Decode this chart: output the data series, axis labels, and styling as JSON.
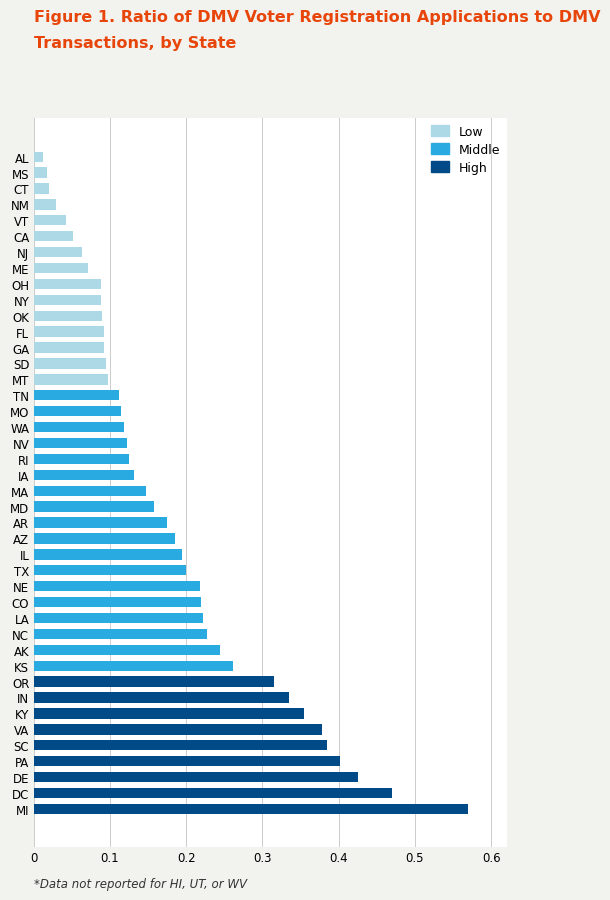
{
  "title_line1": "Figure 1. Ratio of DMV Voter Registration Applications to DMV",
  "title_line2": "Transactions, by State",
  "title_color": "#E8450A",
  "footnote": "*Data not reported for HI, UT, or WV",
  "states": [
    "AL",
    "MS",
    "CT",
    "NM",
    "VT",
    "CA",
    "NJ",
    "ME",
    "OH",
    "NY",
    "OK",
    "FL",
    "GA",
    "SD",
    "MT",
    "TN",
    "MO",
    "WA",
    "NV",
    "RI",
    "IA",
    "MA",
    "MD",
    "AR",
    "AZ",
    "IL",
    "TX",
    "NE",
    "CO",
    "LA",
    "NC",
    "AK",
    "KS",
    "OR",
    "IN",
    "KY",
    "VA",
    "SC",
    "PA",
    "DE",
    "DC",
    "MI"
  ],
  "values": [
    0.013,
    0.018,
    0.02,
    0.03,
    0.042,
    0.052,
    0.063,
    0.072,
    0.088,
    0.088,
    0.09,
    0.092,
    0.093,
    0.095,
    0.098,
    0.112,
    0.115,
    0.118,
    0.122,
    0.125,
    0.132,
    0.148,
    0.158,
    0.175,
    0.185,
    0.195,
    0.2,
    0.218,
    0.22,
    0.222,
    0.228,
    0.245,
    0.262,
    0.315,
    0.335,
    0.355,
    0.378,
    0.385,
    0.402,
    0.425,
    0.47,
    0.57
  ],
  "categories": [
    "Low",
    "Low",
    "Low",
    "Low",
    "Low",
    "Low",
    "Low",
    "Low",
    "Low",
    "Low",
    "Low",
    "Low",
    "Low",
    "Low",
    "Low",
    "Middle",
    "Middle",
    "Middle",
    "Middle",
    "Middle",
    "Middle",
    "Middle",
    "Middle",
    "Middle",
    "Middle",
    "Middle",
    "Middle",
    "Middle",
    "Middle",
    "Middle",
    "Middle",
    "Middle",
    "Middle",
    "High",
    "High",
    "High",
    "High",
    "High",
    "High",
    "High",
    "High",
    "High"
  ],
  "colors": {
    "Low": "#ADD8E6",
    "Middle": "#29ABE2",
    "High": "#004B87"
  },
  "xlim": [
    0,
    0.62
  ],
  "xticks": [
    0,
    0.1,
    0.2,
    0.3,
    0.4,
    0.5,
    0.6
  ],
  "xtick_labels": [
    "0",
    "0.1",
    "0.2",
    "0.3",
    "0.4",
    "0.5",
    "0.6"
  ],
  "background_color": "#F2F2EE",
  "plot_background": "#FFFFFF",
  "bar_height": 0.65,
  "title_fontsize": 11.5,
  "tick_fontsize": 8.5,
  "footnote_fontsize": 8.5,
  "legend_fontsize": 9
}
